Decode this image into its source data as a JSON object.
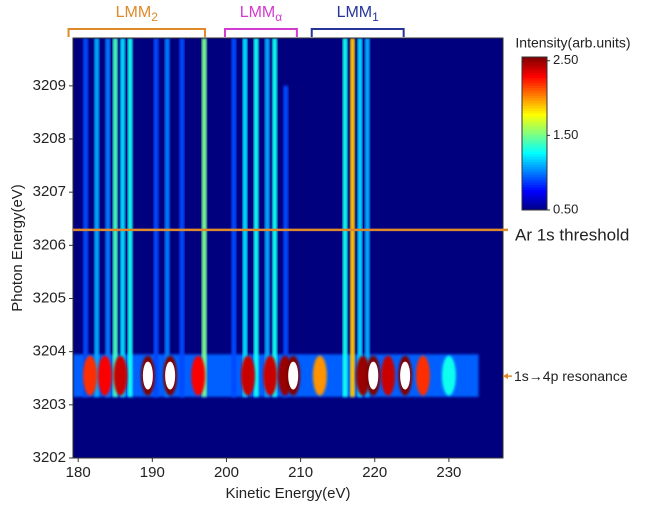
{
  "chart_data": {
    "type": "heatmap",
    "xlabel": "Kinetic Energy(eV)",
    "ylabel": "Photon Energy(eV)",
    "xlim": [
      179.3,
      237.3
    ],
    "ylim": [
      3202,
      3209.9
    ],
    "xticks": [
      180,
      190,
      200,
      210,
      220,
      230
    ],
    "yticks": [
      3202,
      3203,
      3204,
      3205,
      3206,
      3207,
      3208,
      3209
    ],
    "background": "#00007f",
    "colorbar": {
      "title": "Intensity(arb.units)",
      "clim": [
        0.5,
        2.55
      ],
      "ticks": [
        {
          "value": 0.5,
          "label": "0.50"
        },
        {
          "value": 1.5,
          "label": "1.50"
        },
        {
          "value": 2.5,
          "label": "2.50"
        }
      ],
      "colormap": [
        "#00007f",
        "#0000ff",
        "#0080ff",
        "#00ffff",
        "#80ff80",
        "#ffff00",
        "#ff8000",
        "#ff0000",
        "#800000"
      ]
    },
    "resonance_band": {
      "ke": [
        179.3,
        234
      ],
      "photon": [
        3203.15,
        3203.95
      ],
      "intensity": 0.95
    },
    "streaks": [
      {
        "ke": 181.0,
        "top": 3209.9,
        "intensity": 0.9
      },
      {
        "ke": 182.5,
        "top": 3209.9,
        "intensity": 1.1
      },
      {
        "ke": 184.0,
        "top": 3209.9,
        "intensity": 1.0
      },
      {
        "ke": 185.0,
        "top": 3209.9,
        "intensity": 1.4
      },
      {
        "ke": 186.0,
        "top": 3209.9,
        "intensity": 1.2
      },
      {
        "ke": 187.0,
        "top": 3209.9,
        "intensity": 1.3
      },
      {
        "ke": 190.5,
        "top": 3209.9,
        "intensity": 0.9
      },
      {
        "ke": 192.0,
        "top": 3209.9,
        "intensity": 1.0
      },
      {
        "ke": 194.0,
        "top": 3209.9,
        "intensity": 0.9
      },
      {
        "ke": 197.0,
        "top": 3209.9,
        "intensity": 1.5
      },
      {
        "ke": 201.0,
        "top": 3209.9,
        "intensity": 0.9
      },
      {
        "ke": 202.5,
        "top": 3209.9,
        "intensity": 1.2
      },
      {
        "ke": 204.0,
        "top": 3209.9,
        "intensity": 1.3
      },
      {
        "ke": 205.5,
        "top": 3209.9,
        "intensity": 1.1
      },
      {
        "ke": 206.5,
        "top": 3209.9,
        "intensity": 1.3
      },
      {
        "ke": 208.0,
        "top": 3209.0,
        "intensity": 0.9
      },
      {
        "ke": 216.0,
        "top": 3209.9,
        "intensity": 1.3
      },
      {
        "ke": 217.0,
        "top": 3209.9,
        "intensity": 1.9
      },
      {
        "ke": 218.0,
        "top": 3209.9,
        "intensity": 1.2
      },
      {
        "ke": 219.0,
        "top": 3209.9,
        "intensity": 1.1
      }
    ],
    "peaks": [
      {
        "ke": 181.6,
        "intensity": 2.2
      },
      {
        "ke": 183.6,
        "intensity": 2.3
      },
      {
        "ke": 185.7,
        "intensity": 2.4
      },
      {
        "ke": 189.4,
        "intensity": 2.55
      },
      {
        "ke": 192.4,
        "intensity": 2.55
      },
      {
        "ke": 196.2,
        "intensity": 2.3
      },
      {
        "ke": 202.9,
        "intensity": 2.4
      },
      {
        "ke": 205.9,
        "intensity": 2.4
      },
      {
        "ke": 207.9,
        "intensity": 2.5
      },
      {
        "ke": 209.0,
        "intensity": 2.55
      },
      {
        "ke": 212.6,
        "intensity": 2.0
      },
      {
        "ke": 218.4,
        "intensity": 2.5
      },
      {
        "ke": 219.8,
        "intensity": 2.55
      },
      {
        "ke": 221.8,
        "intensity": 2.4
      },
      {
        "ke": 224.1,
        "intensity": 2.55
      },
      {
        "ke": 226.5,
        "intensity": 2.2
      },
      {
        "ke": 230.0,
        "intensity": 1.3
      }
    ],
    "brackets": [
      {
        "label": "LMM",
        "sub": "2",
        "ke": [
          178.7,
          197.1
        ],
        "color": "#e0892a"
      },
      {
        "label": "LMM",
        "sub": "α",
        "ke": [
          199.8,
          209.5
        ],
        "color": "#d43ad0"
      },
      {
        "label": "LMM",
        "sub": "1",
        "ke": [
          211.5,
          223.9
        ],
        "color": "#25359a"
      }
    ],
    "annotations": [
      {
        "text": "Ar 1s threshold",
        "photon": 3206.29,
        "color": "#e0892a",
        "style": "line"
      },
      {
        "text": "1s→4p resonance",
        "photon": 3203.54,
        "color": "#e0892a",
        "style": "arrow"
      }
    ]
  }
}
